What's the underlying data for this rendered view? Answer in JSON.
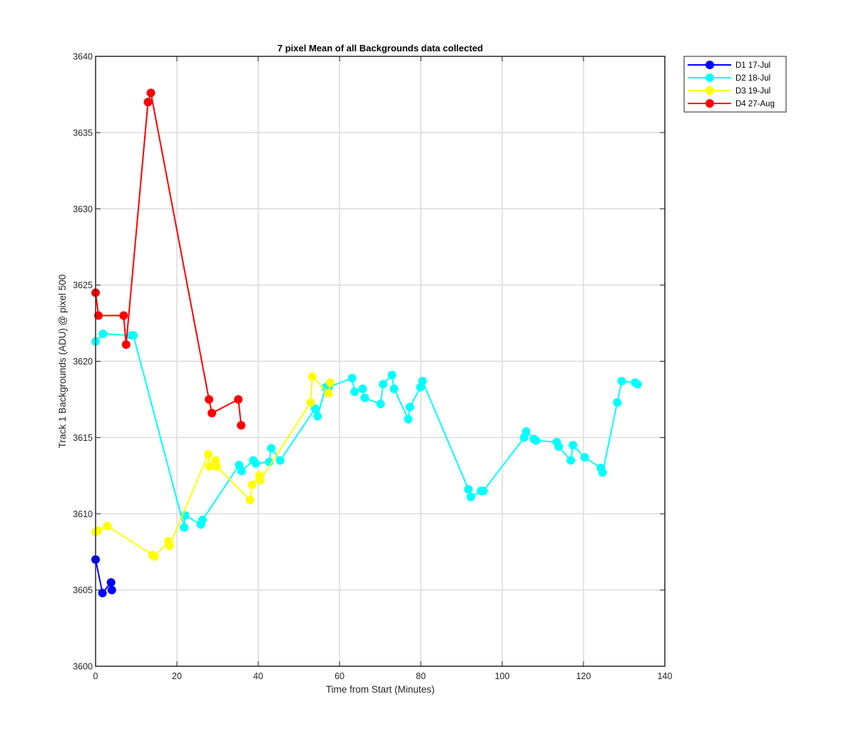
{
  "chart_data": {
    "type": "line",
    "title": "7 pixel Mean of all Backgrounds data collected",
    "xlabel": "Time from Start (Minutes)",
    "ylabel": "Track 1 Backgrounds (ADU) @ pixel 500",
    "xlim": [
      0,
      140
    ],
    "ylim": [
      3600,
      3640
    ],
    "xticks": [
      "0",
      "20",
      "40",
      "60",
      "80",
      "100",
      "120",
      "140"
    ],
    "yticks": [
      "3600",
      "3605",
      "3610",
      "3615",
      "3620",
      "3625",
      "3630",
      "3635",
      "3640"
    ],
    "grid": true,
    "legend_position": "outside top-right",
    "series": [
      {
        "name": "D1 17-Jul",
        "color": "#0000ff",
        "x": [
          0,
          1.7,
          3.8,
          4.0
        ],
        "y": [
          3607.0,
          3604.8,
          3605.5,
          3605.0
        ]
      },
      {
        "name": "D2 18-Jul",
        "color": "#00ffff",
        "x": [
          0,
          1.8,
          8.8,
          9.3,
          21.8,
          22.0,
          25.9,
          26.3,
          35.3,
          35.9,
          38.8,
          39.4,
          42.7,
          43.2,
          45.4,
          54.0,
          54.6,
          56.6,
          57.3,
          63.1,
          63.7,
          65.7,
          66.2,
          70.1,
          70.7,
          72.9,
          73.4,
          76.9,
          77.3,
          79.9,
          80.4,
          91.7,
          92.3,
          94.8,
          95.4,
          105.4,
          105.9,
          107.8,
          108.3,
          113.4,
          113.9,
          116.9,
          117.4,
          120.3,
          124.3,
          124.7,
          128.3,
          129.4,
          132.7,
          133.3
        ],
        "y": [
          3621.3,
          3621.8,
          3621.7,
          3621.7,
          3609.1,
          3609.9,
          3609.3,
          3609.6,
          3613.2,
          3612.8,
          3613.5,
          3613.3,
          3613.4,
          3614.3,
          3613.5,
          3616.9,
          3616.4,
          3618.3,
          3618.3,
          3618.9,
          3618.0,
          3618.2,
          3617.6,
          3617.2,
          3618.5,
          3619.1,
          3618.2,
          3616.2,
          3617.0,
          3618.3,
          3618.7,
          3611.6,
          3611.1,
          3611.5,
          3611.5,
          3615.0,
          3615.4,
          3614.9,
          3614.8,
          3614.7,
          3614.4,
          3613.5,
          3614.5,
          3613.7,
          3613.0,
          3612.7,
          3617.3,
          3618.7,
          3618.6,
          3618.5
        ]
      },
      {
        "name": "D3 19-Jul",
        "color": "#ffff00",
        "x": [
          0,
          0.6,
          2.9,
          14.0,
          14.5,
          17.9,
          18.2,
          27.7,
          28.0,
          29.5,
          29.8,
          38.0,
          38.5,
          40.3,
          40.5,
          52.9,
          53.3,
          57.3,
          57.7
        ],
        "y": [
          3608.8,
          3608.9,
          3609.2,
          3607.3,
          3607.2,
          3608.2,
          3607.9,
          3613.9,
          3613.1,
          3613.5,
          3613.1,
          3610.9,
          3611.9,
          3612.5,
          3612.2,
          3617.3,
          3619.0,
          3617.9,
          3618.6
        ]
      },
      {
        "name": "D4 27-Aug",
        "color": "#ff0000",
        "x": [
          0,
          0.7,
          6.9,
          7.5,
          12.9,
          13.6,
          27.9,
          28.6,
          35.1,
          35.8
        ],
        "y": [
          3624.5,
          3623.0,
          3623.0,
          3621.1,
          3637.0,
          3637.6,
          3617.5,
          3616.6,
          3617.5,
          3615.8
        ]
      }
    ]
  }
}
